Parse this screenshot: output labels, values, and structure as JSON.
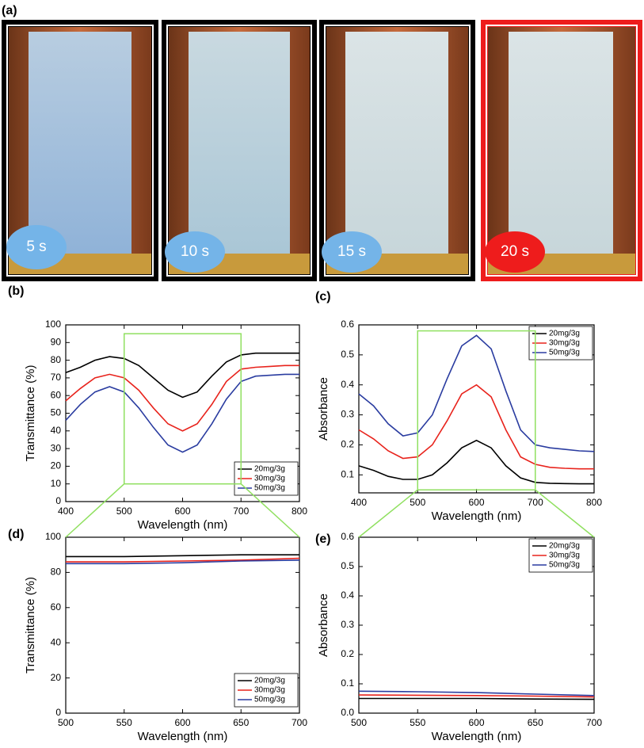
{
  "photo_panel": {
    "label": "(a)",
    "captions": [
      "5 s",
      "10 s",
      "15 s",
      "20 s"
    ]
  },
  "chart_data": [
    {
      "type": "line",
      "label": "(b)",
      "xlabel": "Wavelength (nm)",
      "ylabel": "Transmittance (%)",
      "x": [
        400,
        425,
        450,
        475,
        500,
        525,
        550,
        575,
        600,
        625,
        650,
        675,
        700,
        725,
        750,
        775,
        800
      ],
      "xlim": [
        400,
        800
      ],
      "xticks": [
        400,
        500,
        600,
        700,
        800
      ],
      "ylim": [
        0,
        100
      ],
      "yticks": [
        0,
        10,
        20,
        30,
        40,
        50,
        60,
        70,
        80,
        90,
        100
      ],
      "legend": "lower right",
      "highlight": {
        "x": [
          500,
          700
        ],
        "y": [
          10,
          95
        ],
        "color": "#90e060"
      },
      "series": [
        {
          "name": "20mg/3g",
          "color": "#000000",
          "values": [
            73,
            76,
            80,
            82,
            81,
            77,
            70,
            63,
            59,
            62,
            71,
            79,
            83,
            84,
            84,
            84,
            84
          ]
        },
        {
          "name": "30mg/3g",
          "color": "#e8231c",
          "values": [
            57,
            64,
            70,
            72,
            70,
            63,
            53,
            44,
            40,
            44,
            55,
            68,
            75,
            76,
            76.5,
            77,
            77
          ]
        },
        {
          "name": "50mg/3g",
          "color": "#2a3ca0",
          "values": [
            46,
            55,
            62,
            65,
            62,
            53,
            42,
            32,
            28,
            32,
            44,
            58,
            68,
            71,
            71.5,
            72,
            72
          ]
        }
      ]
    },
    {
      "type": "line",
      "label": "(c)",
      "xlabel": "Wavelength (nm)",
      "ylabel": "Absorbance",
      "x": [
        400,
        425,
        450,
        475,
        500,
        525,
        550,
        575,
        600,
        625,
        650,
        675,
        700,
        725,
        750,
        775,
        800
      ],
      "xlim": [
        400,
        800
      ],
      "xticks": [
        400,
        500,
        600,
        700,
        800
      ],
      "ylim": [
        0.04,
        0.6
      ],
      "yticks": [
        0.1,
        0.2,
        0.3,
        0.4,
        0.5,
        0.6
      ],
      "legend": "upper right",
      "highlight": {
        "x": [
          500,
          700
        ],
        "y": [
          0.05,
          0.58
        ],
        "color": "#90e060"
      },
      "series": [
        {
          "name": "20mg/3g",
          "color": "#000000",
          "values": [
            0.13,
            0.115,
            0.095,
            0.085,
            0.085,
            0.1,
            0.14,
            0.19,
            0.215,
            0.19,
            0.13,
            0.09,
            0.075,
            0.072,
            0.071,
            0.07,
            0.07
          ]
        },
        {
          "name": "30mg/3g",
          "color": "#e8231c",
          "values": [
            0.25,
            0.22,
            0.18,
            0.155,
            0.16,
            0.2,
            0.28,
            0.37,
            0.4,
            0.36,
            0.25,
            0.16,
            0.135,
            0.125,
            0.122,
            0.12,
            0.12
          ]
        },
        {
          "name": "50mg/3g",
          "color": "#2a3ca0",
          "values": [
            0.37,
            0.33,
            0.27,
            0.23,
            0.24,
            0.3,
            0.42,
            0.53,
            0.565,
            0.52,
            0.38,
            0.25,
            0.2,
            0.19,
            0.185,
            0.18,
            0.178
          ]
        }
      ]
    },
    {
      "type": "line",
      "label": "(d)",
      "xlabel": "Wavelength (nm)",
      "ylabel": "Transmittance (%)",
      "x": [
        500,
        550,
        600,
        650,
        700
      ],
      "xlim": [
        500,
        700
      ],
      "xticks": [
        500,
        550,
        600,
        650,
        700
      ],
      "ylim": [
        0,
        100
      ],
      "yticks": [
        0,
        20,
        40,
        60,
        80,
        100
      ],
      "legend": "lower right",
      "series": [
        {
          "name": "20mg/3g",
          "color": "#000000",
          "values": [
            89,
            89,
            89.5,
            90,
            90
          ]
        },
        {
          "name": "30mg/3g",
          "color": "#e8231c",
          "values": [
            86,
            86,
            86.5,
            87,
            88
          ]
        },
        {
          "name": "50mg/3g",
          "color": "#2a3ca0",
          "values": [
            85,
            85,
            85.5,
            86.5,
            87
          ]
        }
      ]
    },
    {
      "type": "line",
      "label": "(e)",
      "xlabel": "Wavelength (nm)",
      "ylabel": "Absorbance",
      "x": [
        500,
        550,
        600,
        650,
        700
      ],
      "xlim": [
        500,
        700
      ],
      "xticks": [
        500,
        550,
        600,
        650,
        700
      ],
      "ylim": [
        0,
        0.6
      ],
      "yticks": [
        {
          "value": 0,
          "label": "0.0"
        },
        0.1,
        0.2,
        0.3,
        0.4,
        0.5,
        0.6
      ],
      "legend": "upper right",
      "series": [
        {
          "name": "20mg/3g",
          "color": "#000000",
          "values": [
            0.05,
            0.05,
            0.05,
            0.048,
            0.047
          ]
        },
        {
          "name": "30mg/3g",
          "color": "#e8231c",
          "values": [
            0.062,
            0.061,
            0.06,
            0.058,
            0.055
          ]
        },
        {
          "name": "50mg/3g",
          "color": "#2a3ca0",
          "values": [
            0.075,
            0.073,
            0.07,
            0.065,
            0.06
          ]
        }
      ]
    }
  ]
}
